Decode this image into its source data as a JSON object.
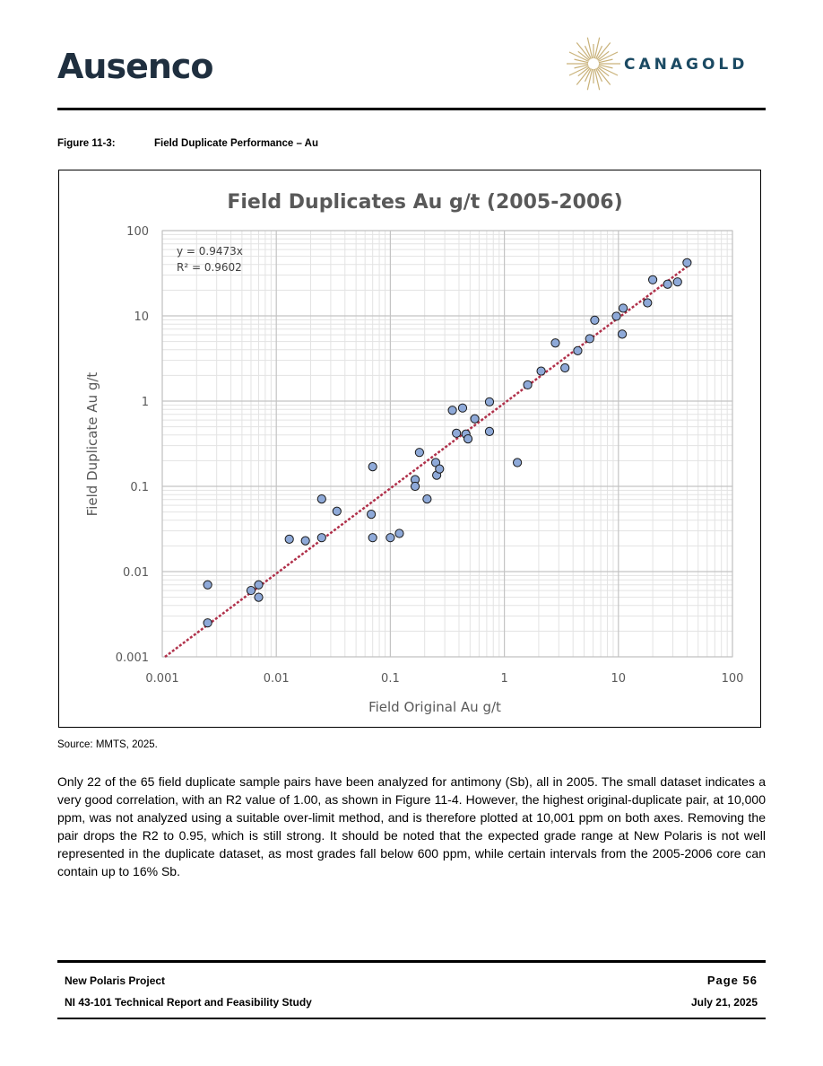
{
  "header": {
    "logo_left": "Ausenco",
    "logo_right": "CANAGOLD"
  },
  "figure": {
    "number": "Figure 11-3:",
    "title": "Field Duplicate Performance – Au"
  },
  "chart_data": {
    "type": "scatter",
    "title": "Field Duplicates Au g/t (2005-2006)",
    "xlabel": "Field Original Au g/t",
    "ylabel": "Field Duplicate Au g/t",
    "xscale": "log",
    "yscale": "log",
    "xlim": [
      0.001,
      100
    ],
    "ylim": [
      0.001,
      100
    ],
    "xticks": [
      "0.001",
      "0.01",
      "0.1",
      "1",
      "10",
      "100"
    ],
    "yticks": [
      "0.001",
      "0.01",
      "0.1",
      "1",
      "10",
      "100"
    ],
    "grid": true,
    "trendline": {
      "equation": "y = 0.9473x",
      "r_squared": "R² = 0.9602",
      "slope": 0.9473,
      "color": "#b0304a"
    },
    "marker_color": "#8ea9d8",
    "marker_edge": "#1a1a1a",
    "points": [
      [
        0.0025,
        0.007
      ],
      [
        0.0025,
        0.0025
      ],
      [
        0.006,
        0.006
      ],
      [
        0.007,
        0.007
      ],
      [
        0.007,
        0.005
      ],
      [
        0.013,
        0.024
      ],
      [
        0.018,
        0.023
      ],
      [
        0.025,
        0.025
      ],
      [
        0.025,
        0.071
      ],
      [
        0.034,
        0.051
      ],
      [
        0.068,
        0.047
      ],
      [
        0.07,
        0.17
      ],
      [
        0.07,
        0.025
      ],
      [
        0.1,
        0.025
      ],
      [
        0.12,
        0.028
      ],
      [
        0.165,
        0.12
      ],
      [
        0.165,
        0.1
      ],
      [
        0.18,
        0.25
      ],
      [
        0.21,
        0.071
      ],
      [
        0.25,
        0.19
      ],
      [
        0.255,
        0.135
      ],
      [
        0.27,
        0.16
      ],
      [
        0.35,
        0.78
      ],
      [
        0.38,
        0.42
      ],
      [
        0.43,
        0.83
      ],
      [
        0.46,
        0.41
      ],
      [
        0.48,
        0.36
      ],
      [
        0.55,
        0.62
      ],
      [
        0.74,
        0.98
      ],
      [
        0.74,
        0.44
      ],
      [
        1.3,
        0.19
      ],
      [
        1.6,
        1.55
      ],
      [
        2.1,
        2.25
      ],
      [
        2.8,
        4.8
      ],
      [
        3.4,
        2.45
      ],
      [
        4.4,
        3.9
      ],
      [
        5.6,
        5.4
      ],
      [
        6.2,
        8.9
      ],
      [
        9.6,
        9.9
      ],
      [
        10.8,
        6.1
      ],
      [
        11.0,
        12.3
      ],
      [
        18.0,
        14.2
      ],
      [
        20.0,
        26.5
      ],
      [
        27.0,
        23.5
      ],
      [
        33.0,
        25.0
      ],
      [
        40.0,
        42.0
      ]
    ]
  },
  "source": "Source: MMTS, 2025.",
  "body_text": "Only 22 of the 65 field duplicate sample pairs have been analyzed for antimony (Sb), all in 2005. The small dataset indicates a very good correlation, with an R2 value of 1.00, as shown in Figure 11-4. However, the highest original-duplicate pair, at 10,000 ppm, was not analyzed using a suitable over-limit method, and is therefore plotted at 10,001 ppm on both axes. Removing the pair drops the R2 to 0.95, which is still strong. It should be noted that the expected grade range at New Polaris is not well represented in the duplicate dataset, as most grades fall below 600 ppm, while certain intervals from the 2005-2006 core can contain up to 16% Sb.",
  "footer": {
    "project": "New Polaris Project",
    "report": "NI 43-101 Technical Report and Feasibility Study",
    "page": "Page 56",
    "date": "July 21, 2025"
  }
}
